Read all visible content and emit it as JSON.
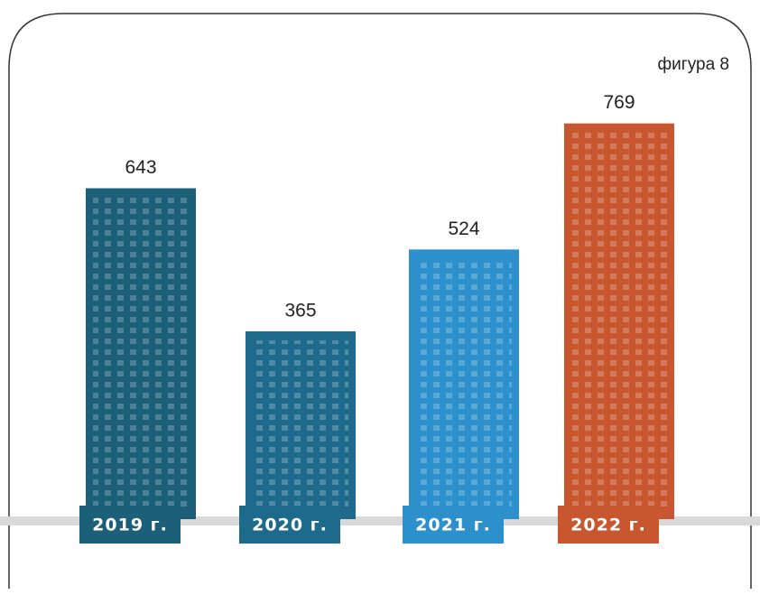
{
  "chart_data": {
    "type": "bar",
    "annotation": "фигура 8",
    "categories": [
      "2019 г.",
      "2020 г.",
      "2021 г.",
      "2022 г."
    ],
    "values": [
      643,
      365,
      524,
      769
    ],
    "colors": [
      "#1b5f78",
      "#1d6a8c",
      "#2b90cb",
      "#c8562f"
    ]
  }
}
